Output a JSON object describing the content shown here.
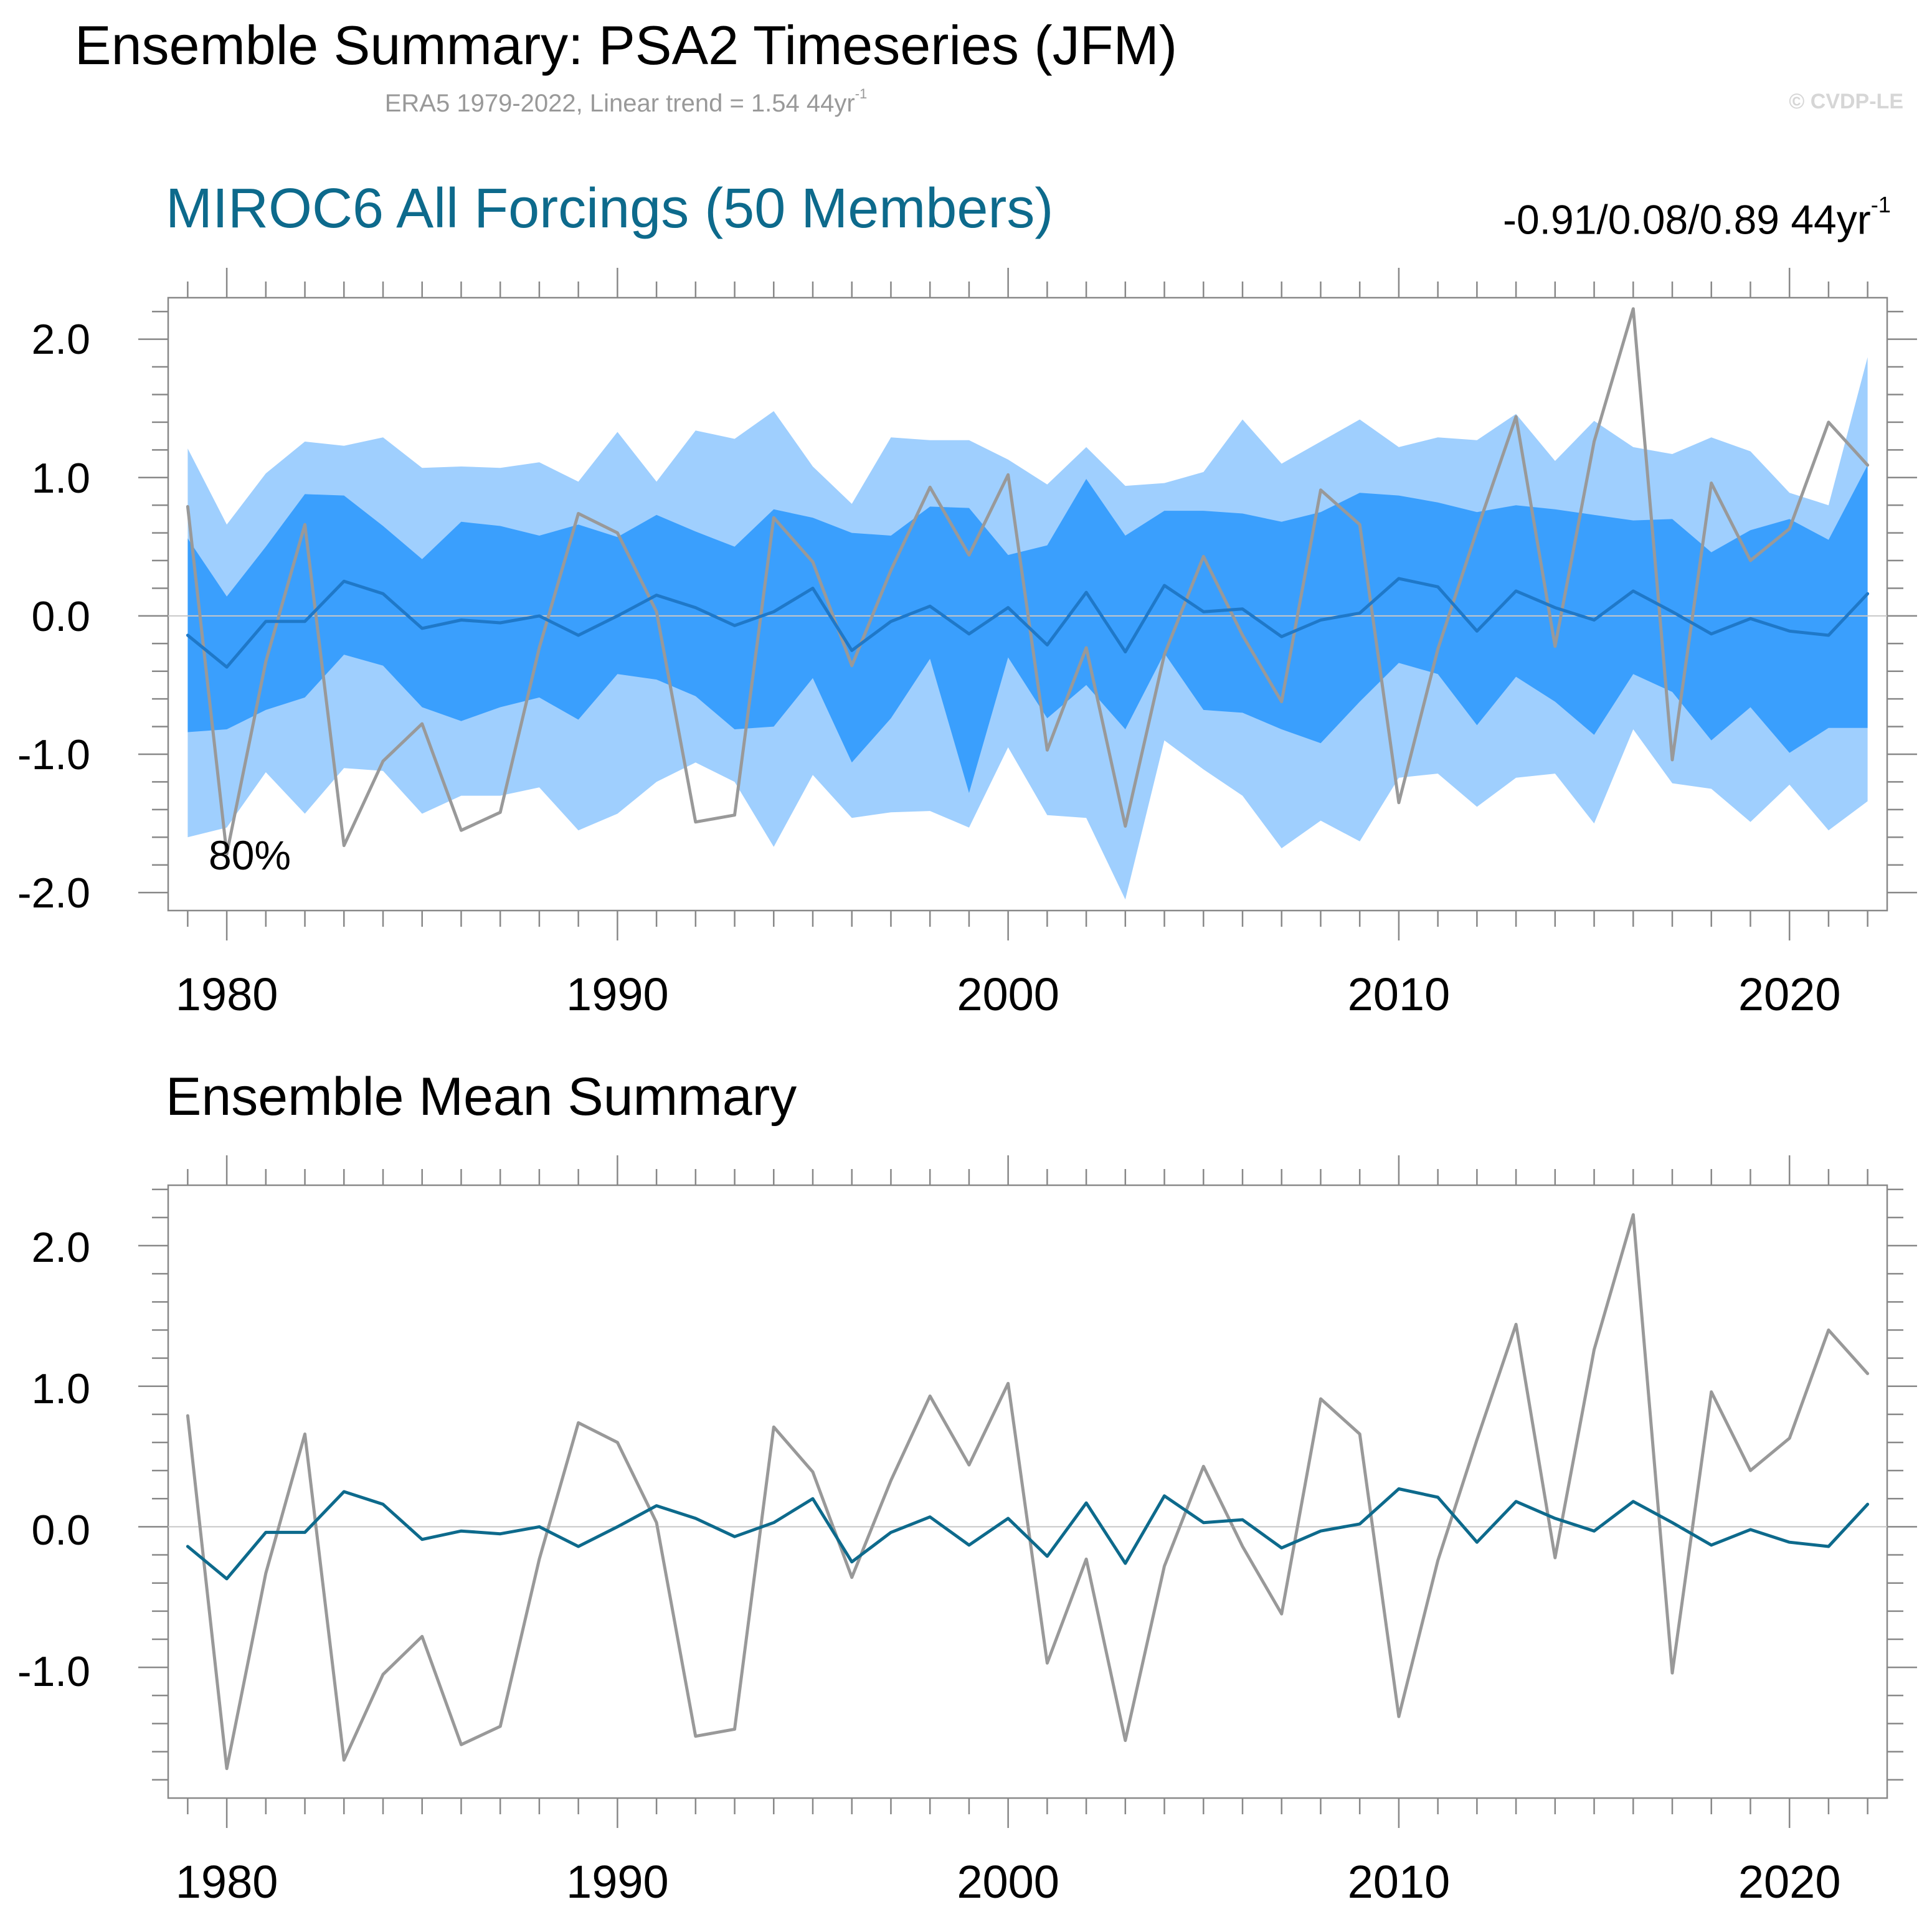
{
  "header": {
    "title": "Ensemble Summary: PSA2 Timeseries (JFM)",
    "subtitle": "ERA5 1979-2022, Linear trend = 1.54 44yr",
    "subtitle_sup": "-1",
    "copyright": "© CVDP-LE"
  },
  "panel1": {
    "title": "MIROC6 All Forcings (50 Members)",
    "trend_text": "-0.91/0.08/0.89 44yr",
    "trend_sup": "-1",
    "band_label": "80%"
  },
  "panel2": {
    "title": "Ensemble Mean Summary"
  },
  "colors": {
    "outer_band": "#9fcffe",
    "inner_band": "#3a9ffd",
    "panel1_mean_line": "#1f78c8",
    "panel2_mean_line": "#0d6a8c",
    "observed_line": "#999999",
    "axis": "#888888"
  },
  "chart_data": [
    {
      "type": "area",
      "name": "panel1",
      "x_axis_ticks": [
        "1980",
        "1990",
        "2000",
        "2010",
        "2020"
      ],
      "y_axis_ticks": [
        "2.0",
        "1.0",
        "0.0",
        "-1.0",
        "-2.0"
      ],
      "xlim": [
        1978.5,
        2022.5
      ],
      "ylim": [
        -2.13,
        2.3
      ],
      "years": [
        1979,
        1980,
        1981,
        1982,
        1983,
        1984,
        1985,
        1986,
        1987,
        1988,
        1989,
        1990,
        1991,
        1992,
        1993,
        1994,
        1995,
        1996,
        1997,
        1998,
        1999,
        2000,
        2001,
        2002,
        2003,
        2004,
        2005,
        2006,
        2007,
        2008,
        2009,
        2010,
        2011,
        2012,
        2013,
        2014,
        2015,
        2016,
        2017,
        2018,
        2019,
        2020,
        2021,
        2022
      ],
      "outer_upper": [
        1.21,
        0.66,
        1.03,
        1.26,
        1.23,
        1.29,
        1.07,
        1.08,
        1.07,
        1.11,
        0.97,
        1.33,
        0.97,
        1.34,
        1.28,
        1.48,
        1.08,
        0.81,
        1.29,
        1.27,
        1.27,
        1.13,
        0.95,
        1.22,
        0.94,
        0.96,
        1.04,
        1.42,
        1.1,
        1.26,
        1.42,
        1.22,
        1.29,
        1.27,
        1.46,
        1.12,
        1.41,
        1.22,
        1.17,
        1.29,
        1.19,
        0.89,
        0.8,
        1.87
      ],
      "inner_upper": [
        0.56,
        0.14,
        0.5,
        0.88,
        0.87,
        0.65,
        0.41,
        0.68,
        0.65,
        0.58,
        0.66,
        0.57,
        0.73,
        0.61,
        0.5,
        0.77,
        0.71,
        0.6,
        0.58,
        0.79,
        0.78,
        0.44,
        0.51,
        0.99,
        0.58,
        0.76,
        0.76,
        0.74,
        0.68,
        0.75,
        0.89,
        0.87,
        0.82,
        0.75,
        0.8,
        0.77,
        0.73,
        0.69,
        0.7,
        0.46,
        0.62,
        0.7,
        0.55,
        1.09
      ],
      "inner_lower": [
        -0.84,
        -0.82,
        -0.68,
        -0.59,
        -0.28,
        -0.36,
        -0.66,
        -0.76,
        -0.66,
        -0.59,
        -0.75,
        -0.42,
        -0.46,
        -0.58,
        -0.82,
        -0.8,
        -0.45,
        -1.06,
        -0.74,
        -0.31,
        -1.28,
        -0.3,
        -0.74,
        -0.5,
        -0.82,
        -0.27,
        -0.68,
        -0.7,
        -0.82,
        -0.92,
        -0.62,
        -0.34,
        -0.42,
        -0.79,
        -0.44,
        -0.62,
        -0.86,
        -0.42,
        -0.55,
        -0.9,
        -0.66,
        -0.99,
        -0.81,
        -0.81
      ],
      "outer_lower": [
        -1.6,
        -1.53,
        -1.13,
        -1.43,
        -1.1,
        -1.12,
        -1.43,
        -1.3,
        -1.3,
        -1.24,
        -1.55,
        -1.43,
        -1.2,
        -1.06,
        -1.2,
        -1.67,
        -1.15,
        -1.46,
        -1.42,
        -1.41,
        -1.53,
        -0.95,
        -1.44,
        -1.46,
        -2.05,
        -0.9,
        -1.11,
        -1.3,
        -1.68,
        -1.48,
        -1.63,
        -1.17,
        -1.14,
        -1.38,
        -1.17,
        -1.14,
        -1.5,
        -0.82,
        -1.21,
        -1.25,
        -1.49,
        -1.22,
        -1.55,
        -1.34
      ],
      "ensemble_mean": [
        -0.14,
        -0.37,
        -0.04,
        -0.04,
        0.25,
        0.16,
        -0.09,
        -0.03,
        -0.05,
        0.0,
        -0.14,
        0.0,
        0.15,
        0.06,
        -0.07,
        0.03,
        0.2,
        -0.25,
        -0.04,
        0.07,
        -0.13,
        0.06,
        -0.21,
        0.17,
        -0.26,
        0.22,
        0.03,
        0.05,
        -0.15,
        -0.03,
        0.02,
        0.27,
        0.21,
        -0.11,
        0.18,
        0.06,
        -0.03,
        0.18,
        0.03,
        -0.13,
        -0.02,
        -0.11,
        -0.14,
        0.16
      ],
      "observed": [
        0.79,
        -1.72,
        -0.33,
        0.66,
        -1.66,
        -1.05,
        -0.78,
        -1.55,
        -1.42,
        -0.23,
        0.74,
        0.6,
        0.03,
        -1.49,
        -1.44,
        0.71,
        0.39,
        -0.36,
        0.33,
        0.93,
        0.44,
        1.02,
        -0.97,
        -0.23,
        -1.52,
        -0.28,
        0.43,
        -0.14,
        -0.62,
        0.91,
        0.66,
        -1.35,
        -0.24,
        0.62,
        1.44,
        -0.22,
        1.26,
        2.22,
        -1.04,
        0.96,
        0.4,
        0.63,
        1.4,
        1.09
      ]
    },
    {
      "type": "line",
      "name": "panel2",
      "x_axis_ticks": [
        "1980",
        "1990",
        "2000",
        "2010",
        "2020"
      ],
      "y_axis_ticks": [
        "2.0",
        "1.0",
        "0.0",
        "-1.0"
      ],
      "xlim": [
        1978.5,
        2022.5
      ],
      "ylim": [
        -1.93,
        2.43
      ],
      "years_ref": "same as panel1",
      "series": [
        "ensemble_mean",
        "observed"
      ]
    }
  ]
}
